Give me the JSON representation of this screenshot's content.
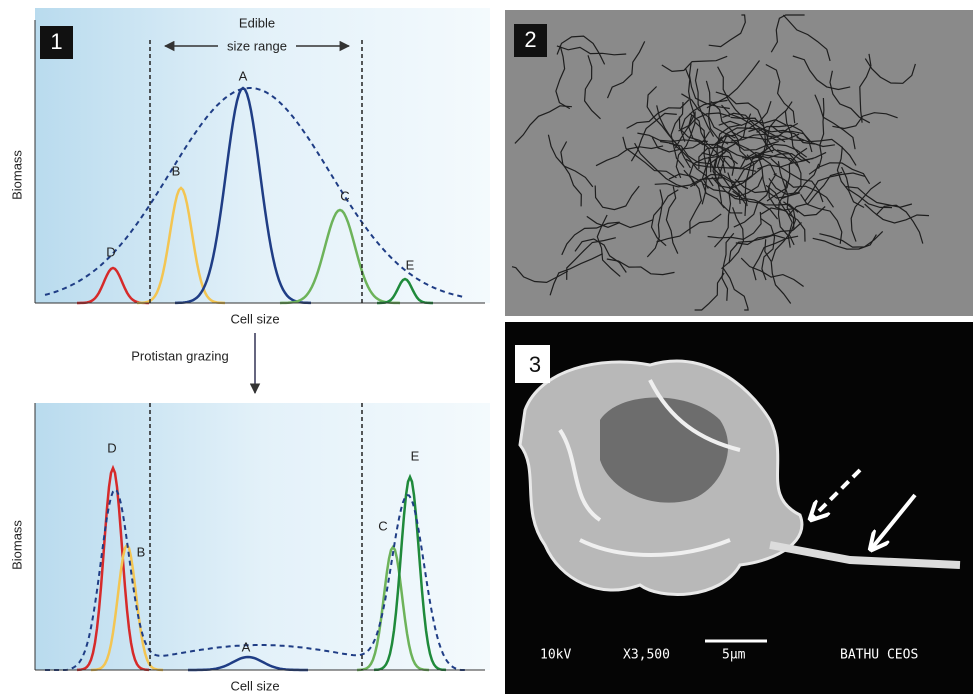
{
  "panel_1": {
    "label": "1",
    "top_plot": {
      "range_label": [
        "Edible",
        "size range"
      ],
      "y_label": "Biomass",
      "x_label": "Cell size",
      "peaks": [
        "A",
        "B",
        "C",
        "D",
        "E"
      ]
    },
    "arrow_label": "Protistan grazing",
    "bottom_plot": {
      "y_label": "Biomass",
      "x_label": "Cell size",
      "peaks": [
        "D",
        "B",
        "A",
        "C",
        "E"
      ]
    }
  },
  "panel_2": {
    "label": "2"
  },
  "panel_3": {
    "label": "3",
    "scale_info": [
      "10kV",
      "X3,500",
      "5μm",
      "BATHU CEOS"
    ]
  }
}
